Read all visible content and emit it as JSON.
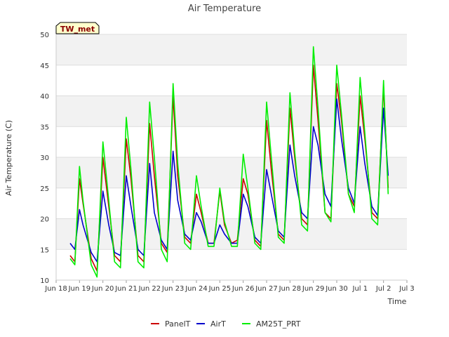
{
  "chart_data": {
    "type": "line",
    "title": "Air Temperature",
    "xlabel": "Time",
    "ylabel": "Air Temperature (C)",
    "badge": "TW_met",
    "ylim": [
      10,
      50
    ],
    "yticks": [
      10,
      15,
      20,
      25,
      30,
      35,
      40,
      45,
      50
    ],
    "xlim": [
      0,
      15
    ],
    "xticks": [
      0,
      1,
      2,
      3,
      4,
      5,
      6,
      7,
      8,
      9,
      10,
      11,
      12,
      13,
      14,
      15
    ],
    "xtick_labels": [
      "Jun 18",
      "Jun 19",
      "Jun 20",
      "Jun 21",
      "Jun 22",
      "Jun 23",
      "Jun 24",
      "Jun 25",
      "Jun 26",
      "Jun 27",
      "Jun 28",
      "Jun 29",
      "Jun 30",
      "Jul 1",
      "Jul 2",
      "Jul 3"
    ],
    "grid": true,
    "legend_position": "bottom-center",
    "series": [
      {
        "name": "PanelT",
        "color": "#cc0000",
        "x": [
          0.6,
          0.8,
          1.0,
          1.15,
          1.5,
          1.75,
          2.0,
          2.25,
          2.5,
          2.75,
          3.0,
          3.2,
          3.5,
          3.75,
          4.0,
          4.2,
          4.5,
          4.75,
          5.0,
          5.2,
          5.5,
          5.75,
          6.0,
          6.2,
          6.5,
          6.75,
          7.0,
          7.2,
          7.5,
          7.75,
          8.0,
          8.2,
          8.5,
          8.75,
          9.0,
          9.2,
          9.5,
          9.75,
          10.0,
          10.2,
          10.5,
          10.75,
          11.0,
          11.2,
          11.5,
          11.75,
          12.0,
          12.2,
          12.5,
          12.75,
          13.0,
          13.2,
          13.5,
          13.75,
          14.0,
          14.2
        ],
        "y": [
          14.0,
          13.0,
          26.5,
          22.5,
          13.5,
          11.5,
          30.0,
          22.0,
          14.0,
          13.0,
          33.0,
          26.5,
          14.0,
          13.0,
          35.5,
          27.0,
          16.0,
          14.5,
          40.0,
          27.0,
          17.0,
          16.0,
          24.0,
          21.0,
          16.0,
          16.0,
          24.5,
          19.0,
          16.0,
          16.5,
          26.5,
          24.0,
          16.5,
          15.5,
          36.0,
          28.0,
          17.5,
          16.5,
          38.0,
          30.0,
          20.0,
          19.0,
          45.0,
          36.0,
          21.0,
          20.0,
          42.0,
          36.0,
          24.0,
          22.0,
          40.0,
          33.0,
          21.0,
          20.0,
          41.5,
          25.0
        ]
      },
      {
        "name": "AirT",
        "color": "#0000cc",
        "x": [
          0.6,
          0.8,
          1.0,
          1.15,
          1.5,
          1.75,
          2.0,
          2.25,
          2.5,
          2.75,
          3.0,
          3.2,
          3.5,
          3.75,
          4.0,
          4.2,
          4.5,
          4.75,
          5.0,
          5.2,
          5.5,
          5.75,
          6.0,
          6.2,
          6.5,
          6.75,
          7.0,
          7.2,
          7.5,
          7.75,
          8.0,
          8.2,
          8.5,
          8.75,
          9.0,
          9.2,
          9.5,
          9.75,
          10.0,
          10.2,
          10.5,
          10.75,
          11.0,
          11.2,
          11.5,
          11.75,
          12.0,
          12.2,
          12.5,
          12.75,
          13.0,
          13.2,
          13.5,
          13.75,
          14.0,
          14.2
        ],
        "y": [
          16.0,
          15.0,
          21.5,
          19.0,
          14.5,
          13.0,
          24.5,
          19.0,
          14.5,
          14.0,
          27.0,
          22.0,
          15.0,
          14.0,
          29.0,
          21.0,
          16.5,
          15.0,
          31.0,
          23.0,
          17.5,
          16.5,
          21.0,
          19.5,
          16.0,
          16.0,
          19.0,
          17.5,
          16.0,
          16.0,
          24.0,
          22.0,
          17.0,
          16.0,
          28.0,
          24.0,
          18.0,
          17.0,
          32.0,
          27.0,
          21.0,
          20.0,
          35.0,
          32.0,
          24.0,
          22.0,
          39.5,
          33.0,
          25.0,
          22.5,
          35.0,
          29.0,
          22.0,
          20.5,
          38.0,
          27.0
        ]
      },
      {
        "name": "AM25T_PRT",
        "color": "#00ee00",
        "x": [
          0.6,
          0.8,
          1.0,
          1.15,
          1.5,
          1.75,
          2.0,
          2.25,
          2.5,
          2.75,
          3.0,
          3.2,
          3.5,
          3.75,
          4.0,
          4.2,
          4.5,
          4.75,
          5.0,
          5.2,
          5.5,
          5.75,
          6.0,
          6.2,
          6.5,
          6.75,
          7.0,
          7.2,
          7.5,
          7.75,
          8.0,
          8.2,
          8.5,
          8.75,
          9.0,
          9.2,
          9.5,
          9.75,
          10.0,
          10.2,
          10.5,
          10.75,
          11.0,
          11.2,
          11.5,
          11.75,
          12.0,
          12.2,
          12.5,
          12.75,
          13.0,
          13.2,
          13.5,
          13.75,
          14.0,
          14.2
        ],
        "y": [
          13.5,
          12.5,
          28.5,
          23.0,
          12.5,
          10.5,
          32.5,
          23.0,
          13.0,
          12.0,
          36.5,
          28.0,
          13.0,
          12.0,
          39.0,
          30.0,
          15.0,
          13.0,
          42.0,
          29.0,
          16.0,
          15.0,
          27.0,
          22.0,
          15.5,
          15.5,
          25.0,
          19.5,
          15.5,
          15.5,
          30.5,
          25.0,
          16.0,
          15.0,
          39.0,
          30.0,
          17.0,
          16.0,
          40.5,
          31.0,
          19.0,
          18.0,
          48.0,
          38.0,
          21.0,
          19.5,
          45.0,
          37.0,
          24.0,
          21.0,
          43.0,
          34.0,
          20.0,
          19.0,
          42.5,
          24.0
        ]
      }
    ]
  }
}
